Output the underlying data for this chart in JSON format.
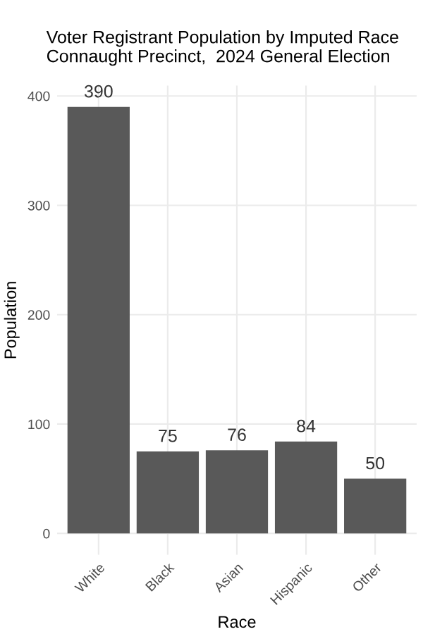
{
  "chart_data": {
    "type": "bar",
    "title": "Voter Registrant Population by Imputed Race\nConnaught Precinct,  2024 General Election",
    "xlabel": "Race",
    "ylabel": "Population",
    "categories": [
      "White",
      "Black",
      "Asian",
      "Hispanic",
      "Other"
    ],
    "values": [
      390,
      75,
      76,
      84,
      50
    ],
    "color": "#595959",
    "ylim": [
      -19.5,
      409.5
    ],
    "yticks": [
      0,
      100,
      200,
      300,
      400
    ],
    "grid": true,
    "data_labels": true
  }
}
